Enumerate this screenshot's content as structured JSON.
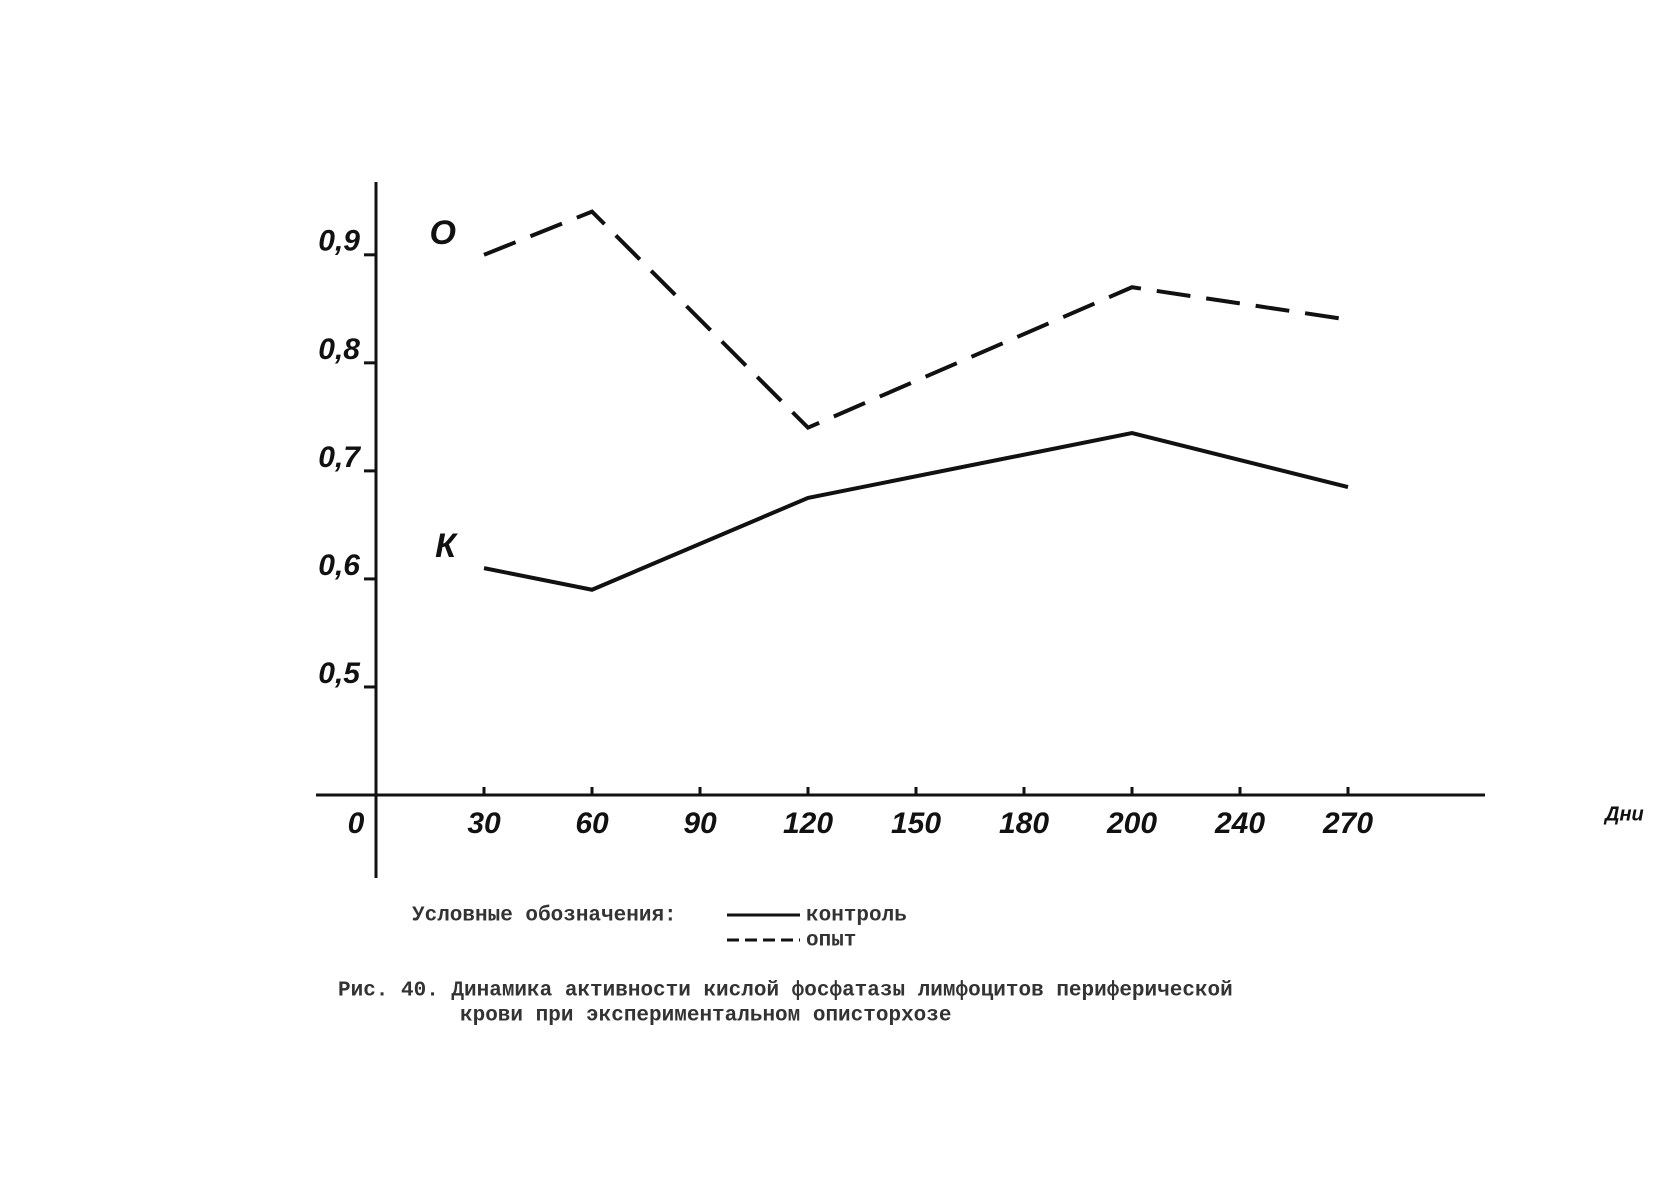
{
  "chart_data": {
    "type": "line",
    "categories": [
      "0",
      "30",
      "60",
      "90",
      "120",
      "150",
      "180",
      "200",
      "240",
      "270"
    ],
    "x_label": "Дни",
    "ylim": [
      0.4,
      0.96
    ],
    "yticks": [
      {
        "value": 0.5,
        "label": "0,5"
      },
      {
        "value": 0.6,
        "label": "0,6"
      },
      {
        "value": 0.7,
        "label": "0,7"
      },
      {
        "value": 0.8,
        "label": "0,8"
      },
      {
        "value": 0.9,
        "label": "0,9"
      }
    ],
    "legend_title": "Условные обозначения:",
    "series": [
      {
        "name": "контроль",
        "label": "К",
        "color": "#111111",
        "dash": false,
        "x": [
          "30",
          "60",
          "120",
          "200",
          "270"
        ],
        "values": [
          0.61,
          0.59,
          0.675,
          0.735,
          0.685
        ]
      },
      {
        "name": "опыт",
        "label": "О",
        "color": "#111111",
        "dash": true,
        "x": [
          "30",
          "60",
          "120",
          "200",
          "270"
        ],
        "values": [
          0.9,
          0.94,
          0.74,
          0.87,
          0.84
        ]
      }
    ],
    "caption": [
      "Рис. 40. Динамика активности кислой фосфатазы лимфоцитов периферической",
      "крови при экспериментальном описторхозе"
    ]
  }
}
